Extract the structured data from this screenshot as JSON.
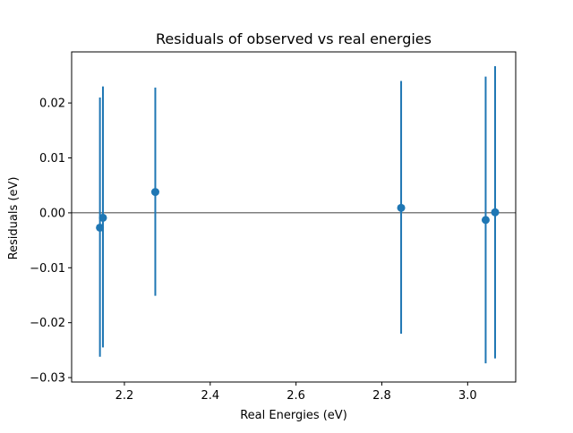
{
  "chart_data": {
    "type": "scatter",
    "title": "Residuals of observed vs real energies",
    "xlabel": "Real Energies (eV)",
    "ylabel": "Residuals (eV)",
    "xlim": [
      2.077,
      3.112
    ],
    "ylim": [
      -0.0308,
      0.0293
    ],
    "x_ticks": [
      2.2,
      2.4,
      2.6,
      2.8,
      3.0
    ],
    "x_tick_labels": [
      "2.2",
      "2.4",
      "2.6",
      "2.8",
      "3.0"
    ],
    "y_ticks": [
      -0.03,
      -0.02,
      -0.01,
      0.0,
      0.01,
      0.02
    ],
    "y_tick_labels": [
      "−0.03",
      "−0.02",
      "−0.01",
      "0.00",
      "0.01",
      "0.02"
    ],
    "grid": false,
    "reference_line_y": 0.0,
    "colors": {
      "series": "#1f77b4",
      "reference_line": "#000000"
    },
    "series": [
      {
        "points": [
          {
            "x": 2.143,
            "y": -0.0027,
            "err_low": -0.0262,
            "err_high": 0.021
          },
          {
            "x": 2.15,
            "y": -0.0009,
            "err_low": -0.0245,
            "err_high": 0.023
          },
          {
            "x": 2.272,
            "y": 0.0038,
            "err_low": -0.0151,
            "err_high": 0.0228
          },
          {
            "x": 2.845,
            "y": 0.0009,
            "err_low": -0.022,
            "err_high": 0.024
          },
          {
            "x": 3.042,
            "y": -0.0013,
            "err_low": -0.0274,
            "err_high": 0.0248
          },
          {
            "x": 3.064,
            "y": 0.0001,
            "err_low": -0.0265,
            "err_high": 0.0267
          }
        ]
      }
    ]
  }
}
